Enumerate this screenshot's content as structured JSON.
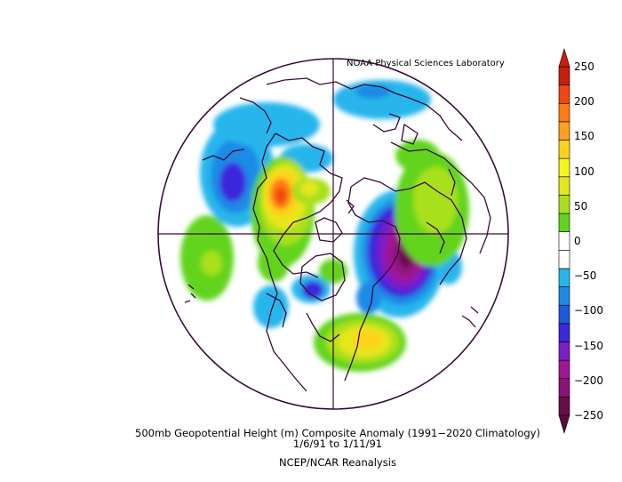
{
  "credit": "NOAA Physical Sciences Laboratory",
  "caption": {
    "line1": "500mb Geopotential Height (m) Composite Anomaly (1991−2020 Climatology)",
    "line2": "1/6/91   to 1/11/91",
    "line3": "NCEP/NCAR Reanalysis"
  },
  "colorbar": {
    "labels": [
      "250",
      "200",
      "150",
      "100",
      "50",
      "0",
      "−50",
      "−100",
      "−150",
      "−200",
      "−250"
    ],
    "colors": [
      "#6a0c4a",
      "#8c1278",
      "#a01496",
      "#7a1ec8",
      "#3a28dc",
      "#1c5adc",
      "#1e8ae6",
      "#27b6ec",
      "#ffffff",
      "#ffffff",
      "#62d41e",
      "#a8e01c",
      "#e6e61c",
      "#f5f51e",
      "#ffd21e",
      "#ffa01e",
      "#ff7a14",
      "#f0460f",
      "#c81e0a"
    ]
  },
  "map": {
    "projection": "north polar stereographic",
    "field": "500mb geopotential height anomaly",
    "units": "m"
  }
}
